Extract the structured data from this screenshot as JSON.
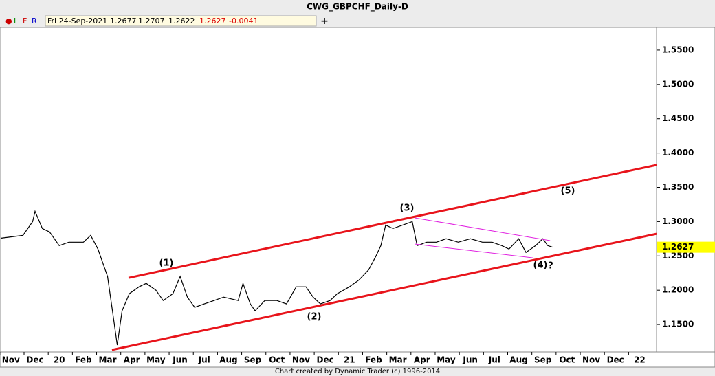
{
  "chart_data": {
    "type": "line",
    "title": "CWG_GBPCHF_Daily-D",
    "info": {
      "indicators": [
        "●",
        "L",
        "F",
        "R"
      ],
      "date": "Fri 24-Sep-2021",
      "open": 1.2677,
      "high": 1.2707,
      "low": 1.2622,
      "close": 1.2627,
      "change": -0.0041,
      "add": "+"
    },
    "footer": "Chart created by Dynamic Trader  (c) 1996-2014",
    "annotations": [
      "(1)",
      "(2)",
      "(3)",
      "(4)",
      "?",
      "(5)"
    ],
    "xlim": [
      -0.45,
      26.7
    ],
    "xticks": [
      {
        "value": 0,
        "label": "Nov"
      },
      {
        "value": 1,
        "label": "Dec"
      },
      {
        "value": 2,
        "label": "20"
      },
      {
        "value": 3,
        "label": "Feb"
      },
      {
        "value": 4,
        "label": "Mar"
      },
      {
        "value": 5,
        "label": "Apr"
      },
      {
        "value": 6,
        "label": "May"
      },
      {
        "value": 7,
        "label": "Jun"
      },
      {
        "value": 8,
        "label": "Jul"
      },
      {
        "value": 9,
        "label": "Aug"
      },
      {
        "value": 10,
        "label": "Sep"
      },
      {
        "value": 11,
        "label": "Oct"
      },
      {
        "value": 12,
        "label": "Nov"
      },
      {
        "value": 13,
        "label": "Dec"
      },
      {
        "value": 14,
        "label": "21"
      },
      {
        "value": 15,
        "label": "Feb"
      },
      {
        "value": 16,
        "label": "Mar"
      },
      {
        "value": 17,
        "label": "Apr"
      },
      {
        "value": 18,
        "label": "May"
      },
      {
        "value": 19,
        "label": "Jun"
      },
      {
        "value": 20,
        "label": "Jul"
      },
      {
        "value": 21,
        "label": "Aug"
      },
      {
        "value": 22,
        "label": "Sep"
      },
      {
        "value": 23,
        "label": "Oct"
      },
      {
        "value": 24,
        "label": "Nov"
      },
      {
        "value": 25,
        "label": "Dec"
      },
      {
        "value": 26,
        "label": "22"
      }
    ],
    "ylim": [
      1.11,
      1.583
    ],
    "yticks": [
      {
        "value": 1.15,
        "label": "1.1500"
      },
      {
        "value": 1.2,
        "label": "1.2000"
      },
      {
        "value": 1.25,
        "label": "1.2500"
      },
      {
        "value": 1.3,
        "label": "1.3000"
      },
      {
        "value": 1.35,
        "label": "1.3500"
      },
      {
        "value": 1.4,
        "label": "1.4000"
      },
      {
        "value": 1.45,
        "label": "1.4500"
      },
      {
        "value": 1.5,
        "label": "1.5000"
      },
      {
        "value": 1.55,
        "label": "1.5500"
      }
    ],
    "series": [
      {
        "color": "#000000",
        "x": [
          -0.4,
          0.5,
          0.9,
          1.0,
          1.3,
          1.6,
          2.0,
          2.4,
          3.0,
          3.3,
          3.6,
          4.0,
          4.2,
          4.4,
          4.6,
          4.9,
          5.3,
          5.6,
          6.0,
          6.3,
          6.7,
          7.0,
          7.3,
          7.6,
          8.0,
          8.4,
          8.8,
          9.4,
          9.6,
          9.9,
          10.1,
          10.5,
          11.0,
          11.4,
          11.8,
          12.2,
          12.5,
          12.8,
          13.2,
          13.5,
          14.0,
          14.4,
          14.8,
          15.1,
          15.3,
          15.5,
          15.8,
          16.2,
          16.6,
          16.8,
          17.2,
          17.6,
          18.0,
          18.5,
          19.0,
          19.5,
          19.9,
          20.3,
          20.6,
          21.0,
          21.3,
          21.7,
          22.0,
          22.2,
          22.4
        ],
        "values": [
          1.276,
          1.28,
          1.3,
          1.315,
          1.29,
          1.285,
          1.265,
          1.27,
          1.27,
          1.28,
          1.26,
          1.22,
          1.17,
          1.12,
          1.17,
          1.195,
          1.205,
          1.21,
          1.2,
          1.185,
          1.195,
          1.22,
          1.19,
          1.175,
          1.18,
          1.185,
          1.19,
          1.185,
          1.21,
          1.18,
          1.17,
          1.185,
          1.185,
          1.18,
          1.205,
          1.205,
          1.19,
          1.18,
          1.185,
          1.195,
          1.205,
          1.215,
          1.23,
          1.25,
          1.265,
          1.295,
          1.29,
          1.295,
          1.3,
          1.265,
          1.27,
          1.27,
          1.275,
          1.27,
          1.275,
          1.27,
          1.27,
          1.265,
          1.26,
          1.275,
          1.255,
          1.265,
          1.275,
          1.265,
          1.2627
        ]
      },
      {
        "color": "#e8141b",
        "x": [
          4.87,
          26.7
        ],
        "values": [
          1.218,
          1.3826
        ]
      },
      {
        "color": "#e8141b",
        "x": [
          4.18,
          26.7
        ],
        "values": [
          1.113,
          1.2823
        ]
      },
      {
        "color": "#e020e0",
        "x": [
          16.7,
          22.3
        ],
        "values": [
          1.3054,
          1.2723
        ]
      },
      {
        "color": "#e020e0",
        "x": [
          16.7,
          21.59
        ],
        "values": [
          1.2673,
          1.2472
        ]
      }
    ]
  }
}
